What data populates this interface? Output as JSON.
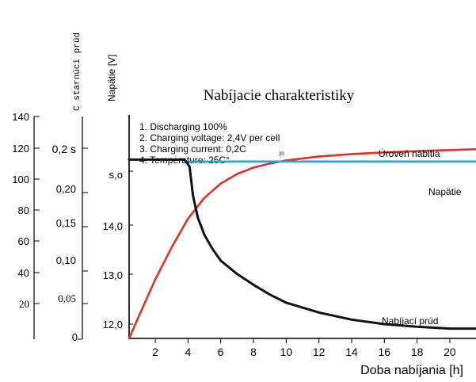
{
  "chart_data": {
    "type": "line",
    "title": "Nabíjacie charakteristiky",
    "xlabel": "Doba nabíjania [h]",
    "xlim": [
      0.4,
      21.6
    ],
    "x_ticks": [
      "2",
      "4",
      "6",
      "8",
      "10",
      "12",
      "14",
      "16",
      "18",
      "20"
    ],
    "notes": [
      "1. Discharging 100%",
      "2. Charging voltage: 2,4V per cell",
      "3. Charging current: 0,2C",
      "4. Temperature: 25C°"
    ],
    "note_subscript": "20",
    "axes": {
      "percent": {
        "ticks": [
          "140",
          "120",
          "100",
          "80",
          "60",
          "40",
          "20"
        ],
        "lim": [
          0,
          140
        ]
      },
      "current": {
        "label": "C starnúci prúd",
        "ticks": [
          "0,2 s",
          "0,20",
          "0,15",
          "0,10",
          "0,05",
          "0"
        ],
        "lim": [
          0,
          0.25
        ]
      },
      "voltage": {
        "label": "Napätie [V]",
        "ticks": [
          "s,o",
          "14,0",
          "13,0",
          "12,0"
        ],
        "lim": [
          11.75,
          15.25
        ]
      }
    },
    "series": [
      {
        "name": "Úroveň nabitia",
        "axis": "percent",
        "color": "#e03222",
        "x": [
          0.4,
          1,
          2,
          3,
          4,
          5,
          6,
          7,
          8,
          9,
          10,
          12,
          14,
          16,
          18,
          20,
          21.6
        ],
        "y": [
          0,
          14,
          37,
          57,
          75,
          88,
          97,
          103,
          107,
          109.5,
          111.5,
          114,
          115.5,
          116.5,
          117.3,
          118,
          118.5
        ]
      },
      {
        "name": "Napätie",
        "axis": "voltage",
        "color": "#2aa3cf",
        "x": [
          3.8,
          21.6
        ],
        "y": [
          14.52,
          14.52
        ]
      },
      {
        "name": "Nabíjací prúd",
        "axis": "current",
        "color": "#111111",
        "x": [
          0.4,
          3.8,
          4.1,
          4.3,
          4.6,
          5,
          5.5,
          6,
          7,
          8,
          9,
          10,
          12,
          14,
          16,
          18,
          20,
          21.6
        ],
        "y": [
          0.2,
          0.2,
          0.192,
          0.16,
          0.135,
          0.116,
          0.1,
          0.087,
          0.072,
          0.06,
          0.049,
          0.04,
          0.029,
          0.021,
          0.016,
          0.013,
          0.011,
          0.011
        ]
      }
    ]
  }
}
